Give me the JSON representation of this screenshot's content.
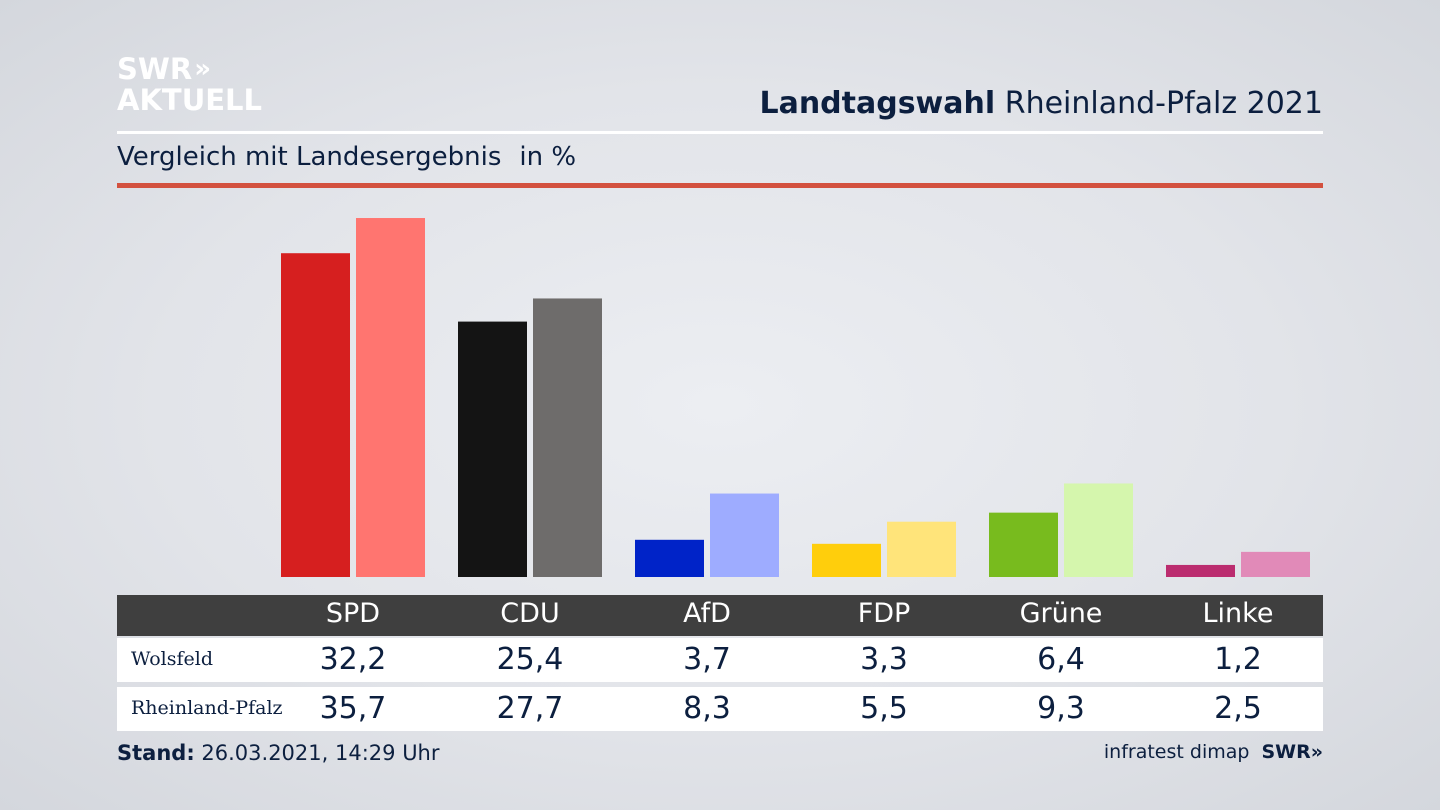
{
  "logo": {
    "line1": "SWR",
    "line2": "AKTUELL",
    "arrows": "»"
  },
  "header": {
    "title_bold": "Landtagswahl",
    "title_rest": "Rheinland-Pfalz 2021"
  },
  "subtitle": {
    "text": "Vergleich mit Landesergebnis",
    "unit": "in %"
  },
  "colors": {
    "accent_rule": "#d3513f",
    "table_header_bg": "#3f3f3f",
    "text": "#0c1f3f"
  },
  "chart_data": {
    "type": "bar",
    "categories": [
      "SPD",
      "CDU",
      "AfD",
      "FDP",
      "Grüne",
      "Linke"
    ],
    "series": [
      {
        "name": "Wolsfeld",
        "values": [
          32.2,
          25.4,
          3.7,
          3.3,
          6.4,
          1.2
        ],
        "labels": [
          "32,2",
          "25,4",
          "3,7",
          "3,3",
          "6,4",
          "1,2"
        ],
        "colors": [
          "#d61f1f",
          "#141414",
          "#0023c8",
          "#ffce0c",
          "#78bb1e",
          "#bb2c6f"
        ]
      },
      {
        "name": "Rheinland-Pfalz",
        "values": [
          35.7,
          27.7,
          8.3,
          5.5,
          9.3,
          2.5
        ],
        "labels": [
          "35,7",
          "27,7",
          "8,3",
          "5,5",
          "9,3",
          "2,5"
        ],
        "colors": [
          "#ff7570",
          "#6e6c6b",
          "#9eacff",
          "#ffe47a",
          "#d5f6ad",
          "#e18ab8"
        ]
      }
    ],
    "ylim": [
      0,
      36
    ],
    "grid": false,
    "legend": "table-below"
  },
  "footer": {
    "stand_label": "Stand:",
    "stand_value": "26.03.2021, 14:29 Uhr"
  },
  "source": {
    "text": "infratest dimap",
    "brand": "SWR",
    "brand_arrows": "»"
  }
}
